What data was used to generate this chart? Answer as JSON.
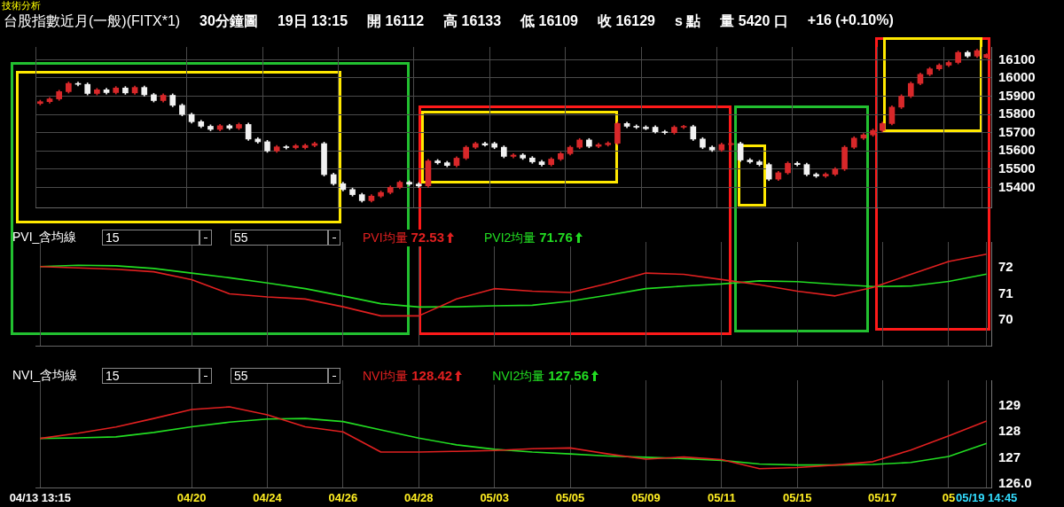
{
  "chart_data": [
    {
      "type": "candlestick",
      "title": "台股指數近月(一般)(FITX*1)",
      "annotations": [
        "技術分析",
        "30分鐘圖",
        "19日 13:15",
        "開 16112",
        "高 16133",
        "低 16109",
        "收 16129",
        "s 點",
        "量 5420 口",
        "+16 (+0.10%)"
      ],
      "categories": [
        null,
        null,
        null,
        null,
        null,
        null,
        null,
        null,
        null,
        null,
        null,
        null,
        null,
        null,
        null,
        null,
        null,
        null,
        null,
        null,
        null,
        null,
        null,
        null,
        null,
        null,
        null,
        null,
        null,
        null,
        null,
        null,
        null,
        null,
        null,
        null,
        null,
        null,
        null,
        null,
        null,
        null,
        null,
        null,
        null,
        null,
        null,
        null,
        null,
        null,
        null,
        null,
        null,
        null,
        null,
        null,
        null,
        null,
        null,
        null,
        null,
        null,
        null,
        null,
        null,
        null,
        null,
        null,
        null,
        null,
        null,
        null,
        null,
        null,
        null,
        null,
        null,
        null,
        null,
        null,
        null,
        null,
        null,
        null,
        null,
        null,
        null,
        null,
        null,
        null,
        null,
        null,
        null,
        null,
        null,
        null,
        null,
        null,
        null,
        null,
        null
      ],
      "ohlc": [
        [
          15860,
          15878,
          15852,
          15870
        ],
        [
          15870,
          15893,
          15862,
          15885
        ],
        [
          15885,
          15933,
          15877,
          15925
        ],
        [
          15925,
          15978,
          15917,
          15970
        ],
        [
          15970,
          15978,
          15957,
          15965
        ],
        [
          15965,
          15973,
          15907,
          15915
        ],
        [
          15915,
          15943,
          15907,
          15935
        ],
        [
          15935,
          15943,
          15912,
          15920
        ],
        [
          15920,
          15953,
          15912,
          15945
        ],
        [
          15945,
          15953,
          15910,
          15918
        ],
        [
          15918,
          15956,
          15910,
          15948
        ],
        [
          15948,
          15956,
          15900,
          15908
        ],
        [
          15908,
          15916,
          15868,
          15876
        ],
        [
          15876,
          15913,
          15868,
          15905
        ],
        [
          15905,
          15913,
          15842,
          15850
        ],
        [
          15850,
          15858,
          15792,
          15800
        ],
        [
          15800,
          15808,
          15752,
          15760
        ],
        [
          15760,
          15768,
          15727,
          15735
        ],
        [
          15735,
          15743,
          15710,
          15718
        ],
        [
          15718,
          15746,
          15710,
          15738
        ],
        [
          15738,
          15746,
          15717,
          15725
        ],
        [
          15725,
          15753,
          15717,
          15745
        ],
        [
          15745,
          15753,
          15657,
          15665
        ],
        [
          15665,
          15673,
          15642,
          15650
        ],
        [
          15650,
          15658,
          15592,
          15600
        ],
        [
          15600,
          15630,
          15592,
          15622
        ],
        [
          15622,
          15630,
          15610,
          15618
        ],
        [
          15618,
          15636,
          15610,
          15628
        ],
        [
          15618,
          15638,
          15610,
          15630
        ],
        [
          15630,
          15648,
          15622,
          15640
        ],
        [
          15640,
          15648,
          15462,
          15470
        ],
        [
          15470,
          15478,
          15412,
          15420
        ],
        [
          15420,
          15428,
          15380,
          15388
        ],
        [
          15388,
          15396,
          15352,
          15360
        ],
        [
          15360,
          15368,
          15319,
          15327
        ],
        [
          15327,
          15360,
          15319,
          15352
        ],
        [
          15352,
          15380,
          15344,
          15372
        ],
        [
          15372,
          15408,
          15364,
          15400
        ],
        [
          15400,
          15436,
          15392,
          15428
        ],
        [
          15428,
          15436,
          15410,
          15418
        ],
        [
          15418,
          15426,
          15400,
          15408
        ],
        [
          15408,
          15553,
          15400,
          15545
        ],
        [
          15545,
          15553,
          15527,
          15535
        ],
        [
          15535,
          15543,
          15512,
          15520
        ],
        [
          15520,
          15568,
          15512,
          15560
        ],
        [
          15560,
          15628,
          15552,
          15620
        ],
        [
          15620,
          15648,
          15612,
          15640
        ],
        [
          15640,
          15648,
          15626,
          15632
        ],
        [
          15640,
          15648,
          15612,
          15620
        ],
        [
          15620,
          15628,
          15562,
          15570
        ],
        [
          15570,
          15585,
          15562,
          15577
        ],
        [
          15577,
          15585,
          15553,
          15561
        ],
        [
          15561,
          15569,
          15532,
          15540
        ],
        [
          15540,
          15548,
          15517,
          15525
        ],
        [
          15525,
          15563,
          15517,
          15555
        ],
        [
          15555,
          15593,
          15547,
          15585
        ],
        [
          15585,
          15628,
          15577,
          15620
        ],
        [
          15620,
          15668,
          15612,
          15660
        ],
        [
          15660,
          15668,
          15617,
          15625
        ],
        [
          15625,
          15642,
          15617,
          15634
        ],
        [
          15634,
          15650,
          15626,
          15642
        ],
        [
          15642,
          15758,
          15634,
          15750
        ],
        [
          15750,
          15758,
          15727,
          15735
        ],
        [
          15735,
          15743,
          15722,
          15730
        ],
        [
          15730,
          15738,
          15716,
          15722
        ],
        [
          15730,
          15738,
          15697,
          15705
        ],
        [
          15705,
          15713,
          15692,
          15700
        ],
        [
          15700,
          15738,
          15692,
          15730
        ],
        [
          15730,
          15741,
          15722,
          15733
        ],
        [
          15733,
          15741,
          15657,
          15665
        ],
        [
          15665,
          15673,
          15612,
          15620
        ],
        [
          15620,
          15628,
          15597,
          15605
        ],
        [
          15605,
          15643,
          15597,
          15635
        ],
        [
          15635,
          15648,
          15627,
          15640
        ],
        [
          15640,
          15648,
          15542,
          15550
        ],
        [
          15550,
          15558,
          15532,
          15540
        ],
        [
          15540,
          15548,
          15517,
          15525
        ],
        [
          15525,
          15533,
          15437,
          15445
        ],
        [
          15445,
          15488,
          15437,
          15480
        ],
        [
          15480,
          15540,
          15472,
          15532
        ],
        [
          15532,
          15540,
          15517,
          15525
        ],
        [
          15525,
          15533,
          15463,
          15471
        ],
        [
          15471,
          15479,
          15454,
          15462
        ],
        [
          15462,
          15480,
          15454,
          15472
        ],
        [
          15472,
          15508,
          15464,
          15500
        ],
        [
          15500,
          15628,
          15492,
          15620
        ],
        [
          15620,
          15678,
          15612,
          15670
        ],
        [
          15670,
          15696,
          15662,
          15688
        ],
        [
          15688,
          15720,
          15680,
          15712
        ],
        [
          15712,
          15758,
          15704,
          15750
        ],
        [
          15750,
          15848,
          15742,
          15840
        ],
        [
          15840,
          15908,
          15832,
          15900
        ],
        [
          15900,
          15978,
          15892,
          15970
        ],
        [
          15970,
          16028,
          15962,
          16020
        ],
        [
          16020,
          16058,
          16012,
          16050
        ],
        [
          16050,
          16078,
          16042,
          16070
        ],
        [
          16070,
          16093,
          16062,
          16085
        ],
        [
          16085,
          16148,
          16077,
          16140
        ],
        [
          16140,
          16148,
          16112,
          16120
        ],
        [
          16120,
          16158,
          16112,
          16150
        ],
        [
          16112,
          16133,
          16109,
          16129
        ]
      ],
      "ylim": [
        15290,
        16170
      ],
      "yticks": [
        15400,
        15500,
        15600,
        15700,
        15800,
        15900,
        16000,
        16100
      ],
      "grid": true
    },
    {
      "type": "line",
      "title": "PVI_含均線",
      "annotations": [
        "15",
        "55",
        "72.53",
        "71.76"
      ],
      "categories": [
        null,
        null,
        null,
        null,
        null,
        null,
        null,
        null,
        null,
        null,
        null,
        null,
        null,
        null,
        null,
        null,
        null,
        null,
        null,
        null,
        null,
        null,
        null,
        null,
        null,
        null,
        null,
        null,
        null,
        null,
        null,
        null,
        null,
        null,
        null,
        null,
        null,
        null,
        null,
        null,
        null,
        null,
        null,
        null,
        null,
        null,
        null,
        null,
        null,
        null,
        null,
        null,
        null,
        null,
        null,
        null,
        null,
        null,
        null,
        null,
        null,
        null,
        null,
        null,
        null,
        null,
        null,
        null,
        null,
        null,
        null,
        null,
        null,
        null,
        null,
        null,
        null,
        null,
        null,
        null,
        null,
        null,
        null,
        null,
        null,
        null,
        null,
        null,
        null,
        null,
        null,
        null,
        null,
        null,
        null,
        null,
        null,
        null,
        null,
        null,
        null
      ],
      "series": [
        {
          "name": "PVI均量",
          "color": "#e02020",
          "values": [
            72.05,
            null,
            null,
            null,
            72.0,
            null,
            null,
            null,
            71.95,
            null,
            null,
            null,
            71.85,
            null,
            null,
            null,
            71.55,
            null,
            null,
            null,
            71.0,
            null,
            null,
            null,
            70.88,
            null,
            null,
            null,
            70.8,
            null,
            null,
            null,
            70.5,
            null,
            null,
            null,
            70.15,
            null,
            null,
            null,
            70.15,
            null,
            null,
            null,
            70.8,
            null,
            null,
            null,
            71.2,
            null,
            null,
            null,
            71.1,
            null,
            null,
            null,
            71.05,
            null,
            null,
            null,
            71.4,
            null,
            null,
            null,
            71.8,
            null,
            null,
            null,
            71.75,
            null,
            null,
            null,
            71.55,
            null,
            null,
            null,
            71.35,
            null,
            null,
            null,
            71.1,
            null,
            null,
            null,
            70.92,
            null,
            null,
            null,
            71.25,
            null,
            null,
            null,
            71.75,
            null,
            null,
            null,
            72.25,
            null,
            null,
            null,
            72.53
          ]
        },
        {
          "name": "PVI2均量",
          "color": "#22dd22",
          "values": [
            72.05,
            null,
            null,
            null,
            72.1,
            null,
            null,
            null,
            72.08,
            null,
            null,
            null,
            71.98,
            null,
            null,
            null,
            71.8,
            null,
            null,
            null,
            71.62,
            null,
            null,
            null,
            71.42,
            null,
            null,
            null,
            71.2,
            null,
            null,
            null,
            70.92,
            null,
            null,
            null,
            70.62,
            null,
            null,
            null,
            70.49,
            null,
            null,
            null,
            70.5,
            null,
            null,
            null,
            70.54,
            null,
            null,
            null,
            70.56,
            null,
            null,
            null,
            70.72,
            null,
            null,
            null,
            70.95,
            null,
            null,
            null,
            71.2,
            null,
            null,
            null,
            71.3,
            null,
            null,
            null,
            71.38,
            null,
            null,
            null,
            71.5,
            null,
            null,
            null,
            71.47,
            null,
            null,
            null,
            71.37,
            null,
            null,
            null,
            71.28,
            null,
            null,
            null,
            71.3,
            null,
            null,
            null,
            71.48,
            null,
            null,
            null,
            71.76
          ]
        }
      ],
      "ylim": [
        69,
        73
      ],
      "yticks": [
        70,
        71,
        72
      ],
      "grid": "x",
      "legend": "top"
    },
    {
      "type": "line",
      "title": "NVI_含均線",
      "annotations": [
        "15",
        "55",
        "128.42",
        "127.56"
      ],
      "categories": [
        "04/13 13:15",
        null,
        null,
        null,
        null,
        null,
        null,
        null,
        null,
        null,
        null,
        null,
        null,
        null,
        null,
        null,
        "04/20",
        null,
        null,
        null,
        null,
        null,
        null,
        null,
        "04/24",
        null,
        null,
        null,
        null,
        null,
        null,
        null,
        "04/26",
        null,
        null,
        null,
        null,
        null,
        null,
        null,
        "04/28",
        null,
        null,
        null,
        null,
        null,
        null,
        null,
        "05/03",
        null,
        null,
        null,
        null,
        null,
        null,
        null,
        "05/05",
        null,
        null,
        null,
        null,
        null,
        null,
        null,
        "05/09",
        null,
        null,
        null,
        null,
        null,
        null,
        null,
        "05/11",
        null,
        null,
        null,
        null,
        null,
        null,
        null,
        "05/15",
        null,
        null,
        null,
        null,
        null,
        null,
        null,
        null,
        "05/17",
        null,
        null,
        null,
        null,
        null,
        null,
        "05",
        null,
        null,
        null,
        "05/19 14:45"
      ],
      "series": [
        {
          "name": "NVI均量",
          "color": "#e02020",
          "values": [
            127.75,
            null,
            null,
            null,
            127.95,
            null,
            null,
            null,
            128.19,
            null,
            null,
            null,
            128.52,
            null,
            null,
            null,
            128.87,
            null,
            null,
            null,
            128.97,
            null,
            null,
            null,
            128.66,
            null,
            null,
            null,
            128.2,
            null,
            null,
            null,
            128.0,
            null,
            null,
            null,
            127.22,
            null,
            null,
            null,
            127.22,
            null,
            null,
            null,
            127.25,
            null,
            null,
            null,
            127.28,
            null,
            null,
            null,
            127.35,
            null,
            null,
            null,
            127.38,
            null,
            null,
            null,
            127.15,
            null,
            null,
            null,
            126.95,
            null,
            null,
            null,
            127.03,
            null,
            null,
            null,
            126.93,
            null,
            null,
            null,
            126.58,
            null,
            null,
            null,
            126.62,
            null,
            null,
            null,
            126.72,
            null,
            null,
            null,
            126.85,
            null,
            null,
            null,
            127.3,
            null,
            null,
            null,
            127.85,
            null,
            null,
            null,
            128.42
          ]
        },
        {
          "name": "NVI2均量",
          "color": "#22dd22",
          "values": [
            127.75,
            null,
            null,
            null,
            127.77,
            null,
            null,
            null,
            127.81,
            null,
            null,
            null,
            127.98,
            null,
            null,
            null,
            128.2,
            null,
            null,
            null,
            128.38,
            null,
            null,
            null,
            128.5,
            null,
            null,
            null,
            128.52,
            null,
            null,
            null,
            128.4,
            null,
            null,
            null,
            128.08,
            null,
            null,
            null,
            127.76,
            null,
            null,
            null,
            127.5,
            null,
            null,
            null,
            127.33,
            null,
            null,
            null,
            127.22,
            null,
            null,
            null,
            127.15,
            null,
            null,
            null,
            127.07,
            null,
            null,
            null,
            127.02,
            null,
            null,
            null,
            126.97,
            null,
            null,
            null,
            126.9,
            null,
            null,
            null,
            126.76,
            null,
            null,
            null,
            126.72,
            null,
            null,
            null,
            126.72,
            null,
            null,
            null,
            126.74,
            null,
            null,
            null,
            126.82,
            null,
            null,
            null,
            127.05,
            null,
            null,
            null,
            127.56
          ]
        }
      ],
      "ylim": [
        125.85,
        130
      ],
      "yticks": [
        {
          "value": 126,
          "label": "126.0"
        },
        127,
        128,
        129
      ],
      "grid": "x",
      "legend": "top"
    }
  ]
}
